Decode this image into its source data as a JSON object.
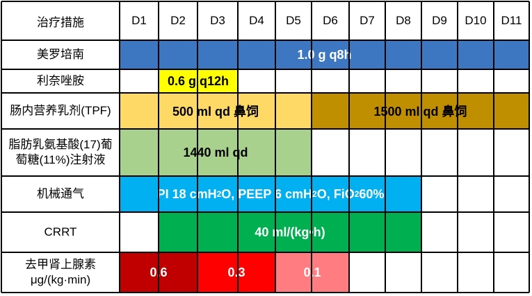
{
  "header": {
    "first_col": "治疗措施",
    "days": [
      "D1",
      "D2",
      "D3",
      "D4",
      "D5",
      "D6",
      "D7",
      "D8",
      "D9",
      "D10",
      "D11"
    ]
  },
  "rows": [
    {
      "label": "美罗培南",
      "bars": [
        {
          "text": "1.0 g q8h",
          "start": 1,
          "end": 11,
          "color": "#3d77c1",
          "text_color": "#ffffff"
        }
      ]
    },
    {
      "label": "利奈唑胺",
      "bars": [
        {
          "text": "0.6 g q12h",
          "start": 2,
          "end": 3,
          "color": "#ffff00",
          "text_color": "#000000"
        }
      ]
    },
    {
      "label": "肠内营养乳剂(TPF)",
      "bars": [
        {
          "text": "500 ml qd 鼻饲",
          "start": 1,
          "end": 5,
          "color": "#ffd966",
          "text_color": "#000000"
        },
        {
          "text": "1500 ml qd 鼻饲",
          "start": 6,
          "end": 11,
          "color": "#bf8f00",
          "text_color": "#000000"
        }
      ]
    },
    {
      "label": "脂肪乳氨基酸(17)葡萄糖(11%)注射液",
      "label_lines": [
        "脂肪乳氨基酸(17)葡",
        "萄糖(11%)注射液"
      ],
      "bars": [
        {
          "text": "1440 ml qd",
          "start": 1,
          "end": 5,
          "color": "#a9d18e",
          "text_color": "#000000"
        }
      ]
    },
    {
      "label": "机械通气",
      "bars": [
        {
          "text": "PI 18 cmH2O, PEEP 6 cmH2O, FiO2 60%",
          "start": 1,
          "end": 8,
          "color": "#00b0f0",
          "text_color": "#ffffff"
        }
      ]
    },
    {
      "label": "CRRT",
      "bars": [
        {
          "text": "40 ml/(kg•h)",
          "start": 2,
          "end": 8,
          "color": "#00b050",
          "text_color": "#ffffff"
        }
      ]
    },
    {
      "label": "去甲肾上腺素 μg/(kg·min)",
      "label_lines": [
        "去甲肾上腺素",
        "μg/(kg·min)"
      ],
      "bars": [
        {
          "text": "0.6",
          "start": 1,
          "end": 2,
          "color": "#c00000",
          "text_color": "#ffffff"
        },
        {
          "text": "0.3",
          "start": 3,
          "end": 4,
          "color": "#ff0000",
          "text_color": "#ffffff"
        },
        {
          "text": "0.1",
          "start": 5,
          "end": 6,
          "color": "#ff7c80",
          "text_color": "#ffffff"
        }
      ]
    }
  ]
}
